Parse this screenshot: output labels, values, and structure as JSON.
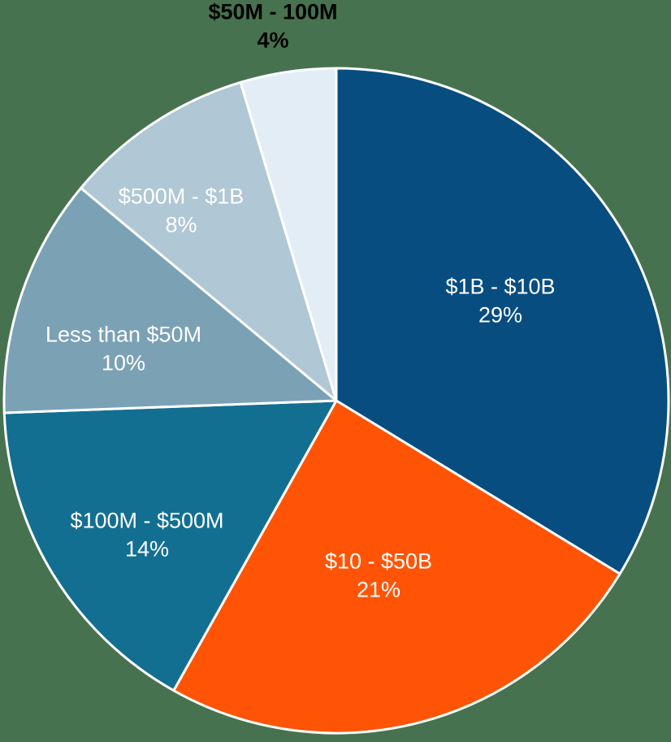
{
  "chart_data": {
    "type": "pie",
    "title": "",
    "legend_position": "none",
    "label_placement": "inside slices (outside callout for smallest slice)",
    "start_angle_deg": 0,
    "direction": "clockwise",
    "separator_color": "#ffffff",
    "background_color": "#47724f",
    "slices": [
      {
        "label": "$1B - $10B",
        "pct_label": "29%",
        "value": 29,
        "color": "#074d80",
        "text_color": "#ffffff",
        "label_outside": false
      },
      {
        "label": "$10 - $50B",
        "pct_label": "21%",
        "value": 21,
        "color": "#ff5405",
        "text_color": "#ffffff",
        "label_outside": false
      },
      {
        "label": "$100M - $500M",
        "pct_label": "14%",
        "value": 14,
        "color": "#136f91",
        "text_color": "#ffffff",
        "label_outside": false
      },
      {
        "label": "Less than $50M",
        "pct_label": "10%",
        "value": 10,
        "color": "#7ba1b5",
        "text_color": "#ffffff",
        "label_outside": false
      },
      {
        "label": "$500M - $1B",
        "pct_label": "8%",
        "value": 8,
        "color": "#b0c7d5",
        "text_color": "#ffffff",
        "label_outside": false
      },
      {
        "label": "$50M - 100M",
        "pct_label": "4%",
        "value": 4,
        "color": "#e2edf6",
        "text_color": "#000000",
        "label_outside": true
      }
    ]
  }
}
